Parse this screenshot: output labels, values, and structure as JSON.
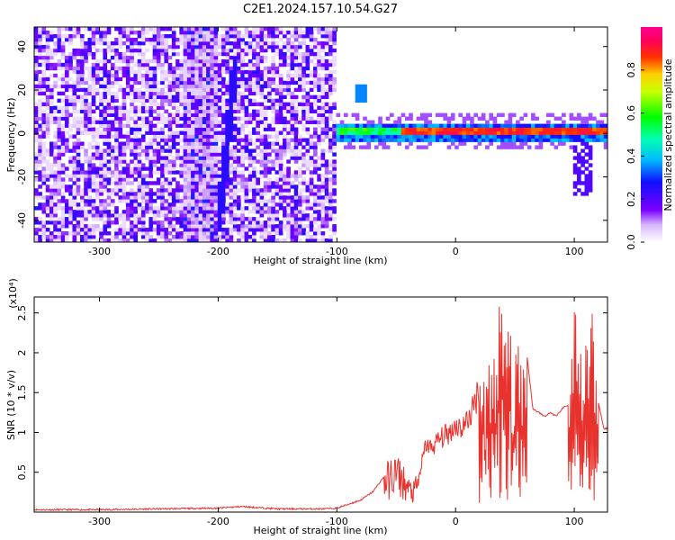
{
  "title": "C2E1.2024.157.10.54.G27",
  "chart_data": [
    {
      "type": "heatmap",
      "name": "spectrogram",
      "xlabel": "Height of straight line (km)",
      "ylabel": "Frequency (Hz)",
      "xlim": [
        -355,
        128
      ],
      "ylim": [
        -50,
        49
      ],
      "xticks": [
        -300,
        -200,
        -100,
        0,
        100
      ],
      "yticks": [
        -40,
        -20,
        0,
        20,
        40
      ],
      "colorbar": {
        "label": "Normalized spectral amplitude",
        "range": [
          0,
          1
        ],
        "ticks": [
          0.0,
          0.2,
          0.4,
          0.6,
          0.8
        ],
        "colormap": "rainbow (white-violet-blue-cyan-green-yellow-red-magenta)"
      },
      "features": [
        {
          "description": "broadband noise",
          "x_range": [
            -355,
            -100
          ],
          "freq_range": [
            -50,
            49
          ],
          "amplitude": 0.2
        },
        {
          "description": "steep streak",
          "x_range": [
            -200,
            -180
          ],
          "freq_range": [
            -45,
            35
          ],
          "amplitude": 0.25
        },
        {
          "description": "narrow carrier line",
          "x_range": [
            -100,
            128
          ],
          "center_freq": 1,
          "amplitude": 0.9
        }
      ],
      "grid": false
    },
    {
      "type": "line",
      "name": "snr",
      "xlabel": "Height of straight line (km)",
      "ylabel": "SNR (10 * v/v)",
      "yscale_label": "(x10⁴)",
      "xlim": [
        -355,
        128
      ],
      "ylim": [
        0,
        2.7
      ],
      "xticks": [
        -300,
        -200,
        -100,
        0,
        100
      ],
      "yticks": [
        0.5,
        1.0,
        1.5,
        2.0,
        2.5
      ],
      "color": "#e8322d",
      "x": [
        -355,
        -300,
        -250,
        -200,
        -190,
        -180,
        -150,
        -110,
        -100,
        -90,
        -80,
        -70,
        -60,
        -50,
        -45,
        -40,
        -35,
        -30,
        -25,
        -20,
        -15,
        -10,
        -5,
        0,
        5,
        10,
        15,
        20,
        25,
        30,
        35,
        40,
        45,
        50,
        55,
        60,
        65,
        70,
        75,
        80,
        85,
        90,
        95,
        100,
        105,
        110,
        115,
        120,
        125
      ],
      "values": [
        0.03,
        0.03,
        0.04,
        0.05,
        0.06,
        0.07,
        0.04,
        0.04,
        0.05,
        0.1,
        0.15,
        0.25,
        0.45,
        0.6,
        0.5,
        0.35,
        0.3,
        0.5,
        0.85,
        0.8,
        0.9,
        0.95,
        1.0,
        1.1,
        1.05,
        1.15,
        1.3,
        1.6,
        1.8,
        2.0,
        2.2,
        2.6,
        2.1,
        2.4,
        1.7,
        2.0,
        1.3,
        1.25,
        1.2,
        1.25,
        1.2,
        1.3,
        1.35,
        2.4,
        1.8,
        2.3,
        2.5,
        1.4,
        1.05
      ],
      "grid": false
    }
  ]
}
